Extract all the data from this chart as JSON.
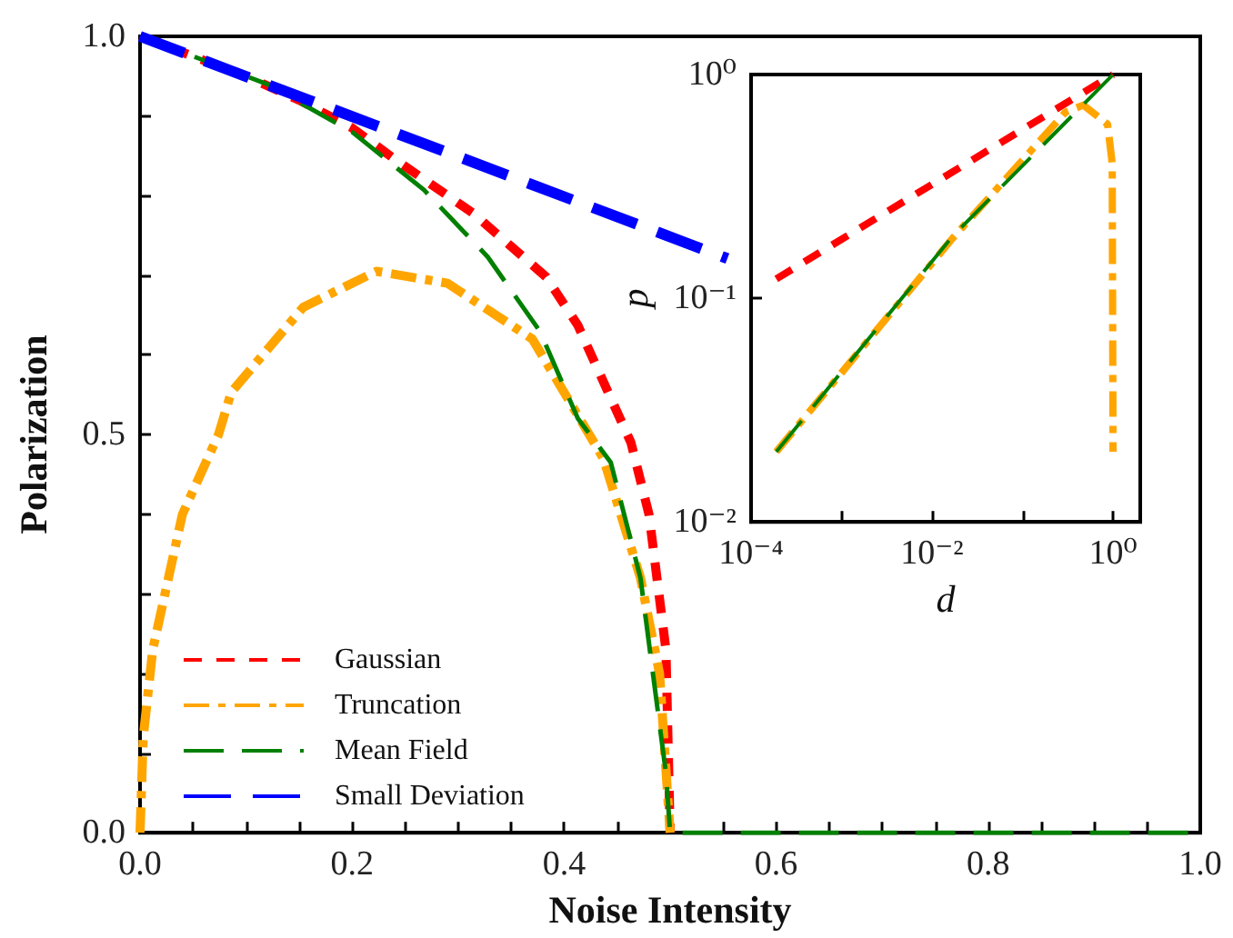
{
  "chart_data": [
    {
      "type": "line",
      "xlabel": "Noise Intensity",
      "ylabel": "Polarization",
      "xlim": [
        0,
        1
      ],
      "ylim": [
        0,
        1
      ],
      "xticks": [
        {
          "value": 0,
          "label": "0.0"
        },
        {
          "value": 0.05,
          "label": null
        },
        {
          "value": 0.1,
          "label": null
        },
        {
          "value": 0.15,
          "label": null
        },
        {
          "value": 0.2,
          "label": "0.2"
        },
        {
          "value": 0.25,
          "label": null
        },
        {
          "value": 0.3,
          "label": null
        },
        {
          "value": 0.35,
          "label": null
        },
        {
          "value": 0.4,
          "label": "0.4"
        },
        {
          "value": 0.45,
          "label": null
        },
        {
          "value": 0.5,
          "label": null
        },
        {
          "value": 0.55,
          "label": null
        },
        {
          "value": 0.6,
          "label": "0.6"
        },
        {
          "value": 0.65,
          "label": null
        },
        {
          "value": 0.7,
          "label": null
        },
        {
          "value": 0.75,
          "label": null
        },
        {
          "value": 0.8,
          "label": "0.8"
        },
        {
          "value": 0.85,
          "label": null
        },
        {
          "value": 0.9,
          "label": null
        },
        {
          "value": 0.95,
          "label": null
        },
        {
          "value": 1,
          "label": "1.0"
        }
      ],
      "yticks": [
        {
          "value": 0,
          "label": "0.0"
        },
        {
          "value": 0.1,
          "label": null
        },
        {
          "value": 0.2,
          "label": null
        },
        {
          "value": 0.3,
          "label": null
        },
        {
          "value": 0.4,
          "label": null
        },
        {
          "value": 0.5,
          "label": "0.5"
        },
        {
          "value": 0.6,
          "label": null
        },
        {
          "value": 0.7,
          "label": null
        },
        {
          "value": 0.8,
          "label": null
        },
        {
          "value": 0.9,
          "label": null
        },
        {
          "value": 1,
          "label": "1.0"
        }
      ],
      "grid": false,
      "legend": "bottom left",
      "marker": "none",
      "series": [
        {
          "name": "Gaussian",
          "color": "#ff0000",
          "line_style": "dashed",
          "x": [
            0,
            0.1,
            0.15,
            0.2,
            0.24,
            0.314,
            0.383,
            0.413,
            0.463,
            0.48,
            0.496,
            0.5
          ],
          "values": [
            1,
            0.95,
            0.92,
            0.885,
            0.846,
            0.778,
            0.698,
            0.637,
            0.49,
            0.4,
            0.23,
            0
          ]
        },
        {
          "name": "Truncation",
          "color": "#ffa500",
          "line_style": "dashdot",
          "x": [
            0,
            0.003,
            0.012,
            0.04,
            0.074,
            0.086,
            0.154,
            0.223,
            0.29,
            0.37,
            0.417,
            0.437,
            0.472,
            0.49,
            0.5
          ],
          "values": [
            0,
            0.12,
            0.23,
            0.4,
            0.5,
            0.553,
            0.66,
            0.705,
            0.69,
            0.62,
            0.515,
            0.47,
            0.32,
            0.2,
            0
          ]
        },
        {
          "name": "Mean Field",
          "color": "#008000",
          "line_style": "dashed",
          "x": [
            0,
            0.12,
            0.2,
            0.268,
            0.328,
            0.377,
            0.413,
            0.444,
            0.472,
            0.496,
            0.5,
            1
          ],
          "values": [
            1,
            0.94,
            0.88,
            0.807,
            0.723,
            0.63,
            0.52,
            0.465,
            0.32,
            0.075,
            0,
            0
          ]
        },
        {
          "name": "Small Deviation",
          "color": "#0000ff",
          "line_style": "dashed",
          "x": [
            0,
            0.302,
            0.554
          ],
          "values": [
            1,
            0.848,
            0.721
          ]
        }
      ]
    },
    {
      "type": "line",
      "xlabel": "d",
      "ylabel": "p",
      "log": "xy",
      "xlim": [
        0.0001,
        2
      ],
      "ylim": [
        0.01,
        1
      ],
      "xticks": [
        {
          "value": 0.0001,
          "label": "10⁻⁴"
        },
        {
          "value": 0.001,
          "label": null
        },
        {
          "value": 0.01,
          "label": "10⁻²"
        },
        {
          "value": 0.1,
          "label": null
        },
        {
          "value": 1,
          "label": "10⁰"
        }
      ],
      "yticks": [
        {
          "value": 0.01,
          "label": "10⁻²"
        },
        {
          "value": 0.1,
          "label": "10⁻¹"
        },
        {
          "value": 1,
          "label": "10⁰"
        }
      ],
      "grid": false,
      "legend": false,
      "marker": "none",
      "series": [
        {
          "color": "#ff0000",
          "line_style": "dashed",
          "x": [
            0.00019,
            1
          ],
          "values": [
            0.122,
            1
          ]
        },
        {
          "color": "#ffa500",
          "line_style": "dashdot",
          "x": [
            0.00019,
            0.017,
            0.3,
            0.47,
            0.87,
            0.98,
            1
          ],
          "values": [
            0.0206,
            0.186,
            0.68,
            0.73,
            0.6,
            0.4,
            0.0206
          ]
        },
        {
          "color": "#008000",
          "line_style": "dashed",
          "x": [
            0.00019,
            0.017,
            1
          ],
          "values": [
            0.0206,
            0.19,
            1
          ]
        }
      ]
    }
  ]
}
